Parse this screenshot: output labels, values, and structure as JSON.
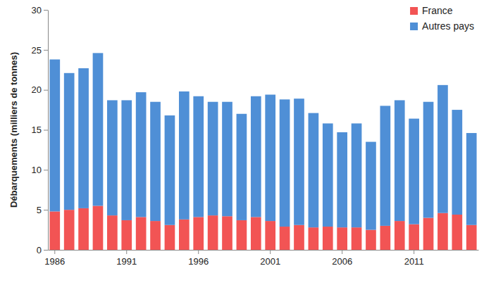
{
  "chart_data": {
    "type": "bar",
    "stacked": true,
    "legend": "upper right",
    "y_label": "Débarquements (milliers de tonnes)",
    "categories": [
      "1986",
      null,
      null,
      null,
      null,
      "1991",
      null,
      null,
      null,
      null,
      "1996",
      null,
      null,
      null,
      null,
      "2001",
      null,
      null,
      null,
      null,
      "2006",
      null,
      null,
      null,
      null,
      "2011",
      null,
      null,
      null,
      null
    ],
    "series": [
      {
        "name": "France",
        "color": "#f25454",
        "values": [
          4.8,
          5.0,
          5.2,
          5.5,
          4.3,
          3.7,
          4.1,
          3.6,
          3.1,
          3.8,
          4.1,
          4.3,
          4.2,
          3.7,
          4.1,
          3.6,
          2.9,
          3.1,
          2.8,
          2.9,
          2.8,
          2.8,
          2.5,
          3.0,
          3.6,
          3.2,
          4.0,
          4.6,
          4.4,
          3.1
        ]
      },
      {
        "name": "Autres pays",
        "color": "#4f8fd6",
        "values": [
          19.0,
          17.1,
          17.5,
          19.1,
          14.4,
          15.0,
          15.6,
          14.9,
          13.7,
          16.0,
          15.1,
          14.2,
          14.3,
          13.3,
          15.1,
          15.8,
          15.9,
          15.8,
          14.3,
          12.9,
          11.9,
          13.0,
          11.0,
          15.0,
          15.1,
          13.2,
          14.5,
          16.0,
          13.1,
          11.5
        ]
      }
    ],
    "ylim": [
      0,
      30
    ],
    "yticks": [
      0,
      5,
      10,
      15,
      20,
      25,
      30
    ],
    "grid": false
  }
}
